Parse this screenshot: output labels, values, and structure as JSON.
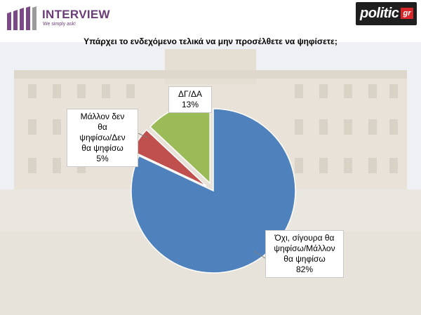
{
  "header": {
    "brand_name": "INTERVIEW",
    "brand_tagline": "We simply ask!",
    "partner_logo": "politic",
    "partner_logo_suffix": "gr"
  },
  "chart_data": {
    "type": "pie",
    "title": "Υπάρχει το ενδεχόμενο τελικά να μην προσέλθετε να ψηφίσετε;",
    "slices": [
      {
        "label_lines": [
          "Όχι, σίγουρα θα",
          "ψηφίσω/Μάλλον",
          "θα ψηφίσω"
        ],
        "value": 82,
        "value_label": "82%",
        "color": "#4f81bd"
      },
      {
        "label_lines": [
          "Μάλλον δεν",
          "θα",
          "ψηφίσω/Δεν",
          "θα ψηφίσω"
        ],
        "value": 5,
        "value_label": "5%",
        "color": "#c0504d"
      },
      {
        "label_lines": [
          "ΔΓ/ΔΑ"
        ],
        "value": 13,
        "value_label": "13%",
        "color": "#9bbb59"
      }
    ]
  }
}
